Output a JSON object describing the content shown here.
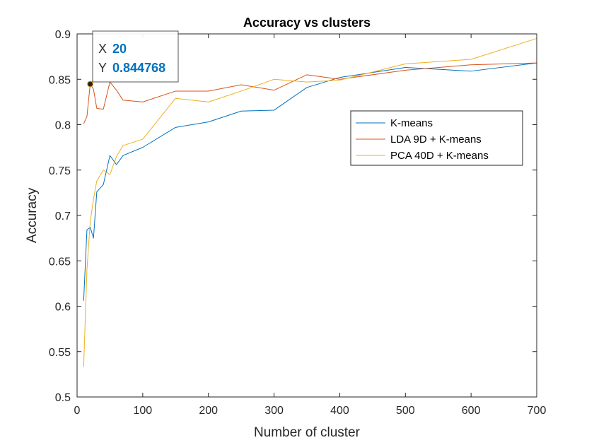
{
  "chart_data": {
    "type": "line",
    "title": "Accuracy vs clusters",
    "xlabel": "Number of cluster",
    "ylabel": "Accuracy",
    "xlim": [
      0,
      700
    ],
    "ylim": [
      0.5,
      0.9
    ],
    "xticks": [
      0,
      100,
      200,
      300,
      400,
      500,
      600,
      700
    ],
    "yticks": [
      0.5,
      0.55,
      0.6,
      0.65,
      0.7,
      0.75,
      0.8,
      0.85,
      0.9
    ],
    "xtick_labels": [
      "0",
      "100",
      "200",
      "300",
      "400",
      "500",
      "600",
      "700"
    ],
    "ytick_labels": [
      "0.5",
      "0.55",
      "0.6",
      "0.65",
      "0.7",
      "0.75",
      "0.8",
      "0.85",
      "0.9"
    ],
    "grid": false,
    "legend_position": "top-right",
    "series": [
      {
        "name": "K-means",
        "color": "#0072BD",
        "x": [
          10,
          15,
          20,
          25,
          30,
          40,
          50,
          60,
          70,
          100,
          150,
          200,
          250,
          300,
          350,
          400,
          500,
          600,
          700
        ],
        "y": [
          0.606,
          0.684,
          0.687,
          0.675,
          0.726,
          0.734,
          0.766,
          0.756,
          0.766,
          0.775,
          0.797,
          0.803,
          0.815,
          0.816,
          0.841,
          0.852,
          0.863,
          0.859,
          0.868
        ]
      },
      {
        "name": "LDA 9D + K-means",
        "color": "#D95319",
        "x": [
          10,
          15,
          20,
          25,
          30,
          40,
          50,
          60,
          70,
          100,
          150,
          200,
          250,
          300,
          350,
          400,
          500,
          600,
          700
        ],
        "y": [
          0.801,
          0.809,
          0.845,
          0.839,
          0.818,
          0.817,
          0.847,
          0.838,
          0.827,
          0.825,
          0.837,
          0.837,
          0.844,
          0.838,
          0.855,
          0.85,
          0.86,
          0.866,
          0.868
        ]
      },
      {
        "name": "PCA 40D + K-means",
        "color": "#EDB120",
        "x": [
          10,
          15,
          20,
          25,
          30,
          40,
          50,
          60,
          70,
          100,
          150,
          200,
          250,
          300,
          350,
          400,
          500,
          600,
          700
        ],
        "y": [
          0.533,
          0.64,
          0.693,
          0.718,
          0.738,
          0.75,
          0.745,
          0.765,
          0.777,
          0.784,
          0.829,
          0.825,
          0.837,
          0.85,
          0.847,
          0.849,
          0.867,
          0.872,
          0.895
        ]
      }
    ],
    "datatip": {
      "x_key": "X",
      "x_value": "20",
      "y_key": "Y",
      "y_value": "0.844768",
      "point": [
        20,
        0.844768
      ]
    }
  }
}
